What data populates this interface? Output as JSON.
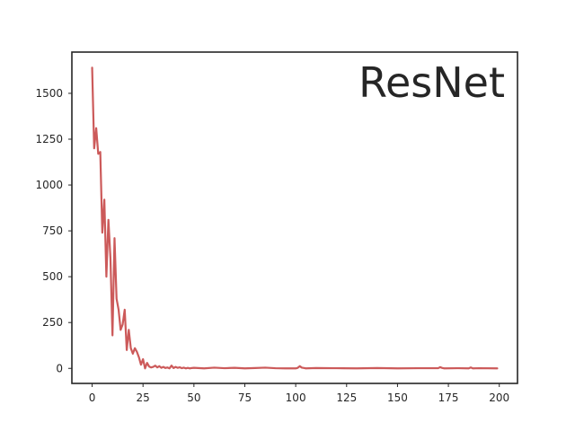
{
  "chart_data": {
    "type": "line",
    "title": "ResNet",
    "xlabel": "",
    "ylabel": "",
    "xlim": [
      -9.95,
      208.95
    ],
    "ylim": [
      -82,
      1725
    ],
    "xticks": [
      0,
      25,
      50,
      75,
      100,
      125,
      150,
      175,
      200
    ],
    "xtick_labels": [
      "0",
      "25",
      "50",
      "75",
      "100",
      "125",
      "150",
      "175",
      "200"
    ],
    "yticks": [
      0,
      250,
      500,
      750,
      1000,
      1250,
      1500
    ],
    "ytick_labels": [
      "0",
      "250",
      "500",
      "750",
      "1000",
      "1250",
      "1500"
    ],
    "grid": false,
    "legend": "none",
    "colors": {
      "line": "#cc5a5a",
      "frame": "#262626",
      "text": "#262626"
    },
    "series": [
      {
        "x": [
          0,
          1,
          2,
          3,
          4,
          5,
          6,
          7,
          8,
          9,
          10,
          11,
          12,
          13,
          14,
          15,
          16,
          17,
          18,
          19,
          20,
          21,
          22,
          23,
          24,
          25,
          26,
          27,
          28,
          29,
          30,
          31,
          32,
          33,
          34,
          35,
          36,
          37,
          38,
          39,
          40,
          41,
          42,
          43,
          44,
          45,
          46,
          47,
          48,
          49,
          50,
          55,
          60,
          65,
          70,
          75,
          80,
          85,
          90,
          95,
          100,
          101,
          102,
          103,
          104,
          105,
          110,
          120,
          130,
          140,
          150,
          160,
          170,
          171,
          172,
          173,
          180,
          185,
          186,
          187,
          190,
          199
        ],
        "y": [
          1640,
          1200,
          1310,
          1170,
          1180,
          740,
          920,
          500,
          810,
          600,
          180,
          710,
          380,
          320,
          210,
          240,
          320,
          100,
          210,
          110,
          80,
          110,
          90,
          60,
          20,
          50,
          0,
          30,
          10,
          5,
          8,
          15,
          5,
          12,
          3,
          8,
          2,
          5,
          0,
          15,
          2,
          8,
          3,
          6,
          1,
          4,
          0,
          3,
          0,
          2,
          3,
          0,
          4,
          1,
          3,
          0,
          2,
          4,
          1,
          0,
          0,
          3,
          12,
          4,
          2,
          0,
          2,
          1,
          0,
          2,
          0,
          1,
          1,
          7,
          2,
          0,
          1,
          0,
          5,
          0,
          1,
          0
        ]
      }
    ]
  }
}
